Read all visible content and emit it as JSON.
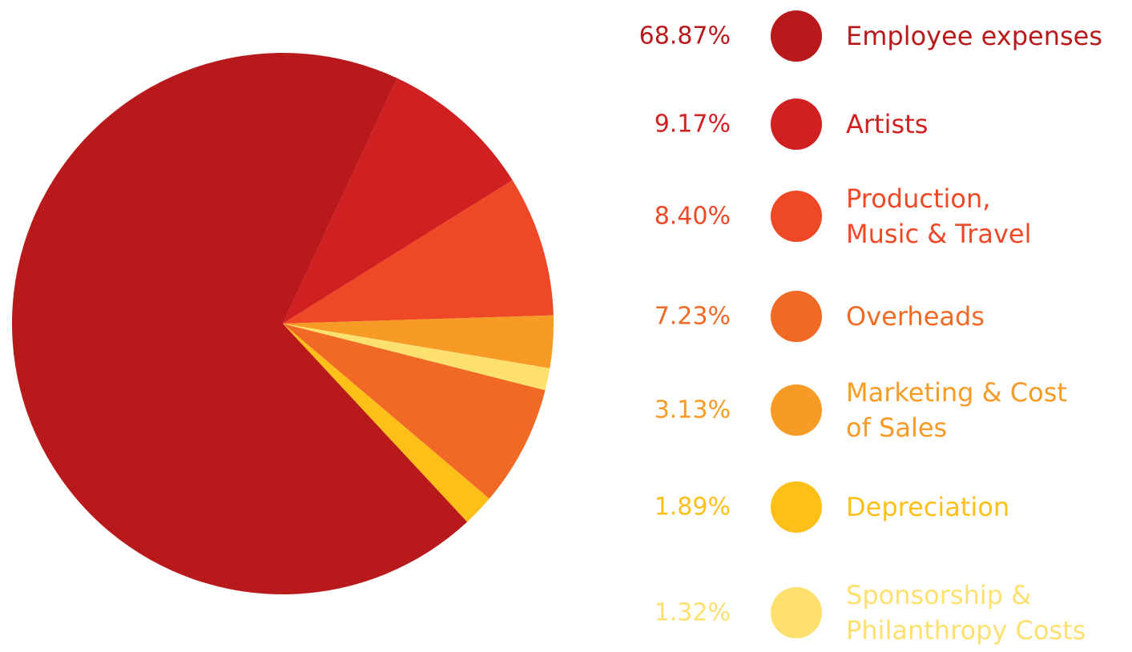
{
  "chart_data": {
    "type": "pie",
    "categories": [
      "Employee expenses",
      "Artists",
      "Production,\nMusic & Travel",
      "Overheads",
      "Marketing & Cost\nof Sales",
      "Depreciation",
      "Sponsorship &\nPhilanthropy Costs"
    ],
    "values": [
      68.87,
      9.17,
      8.4,
      7.23,
      3.13,
      1.89,
      1.32
    ],
    "value_labels": [
      "68.87%",
      "9.17%",
      "8.40%",
      "7.23%",
      "3.13%",
      "1.89%",
      "1.32%"
    ],
    "colors": [
      "#b81a1c",
      "#d12022",
      "#ee4826",
      "#f06a25",
      "#f79b27",
      "#fdbf18",
      "#fee06f"
    ]
  }
}
